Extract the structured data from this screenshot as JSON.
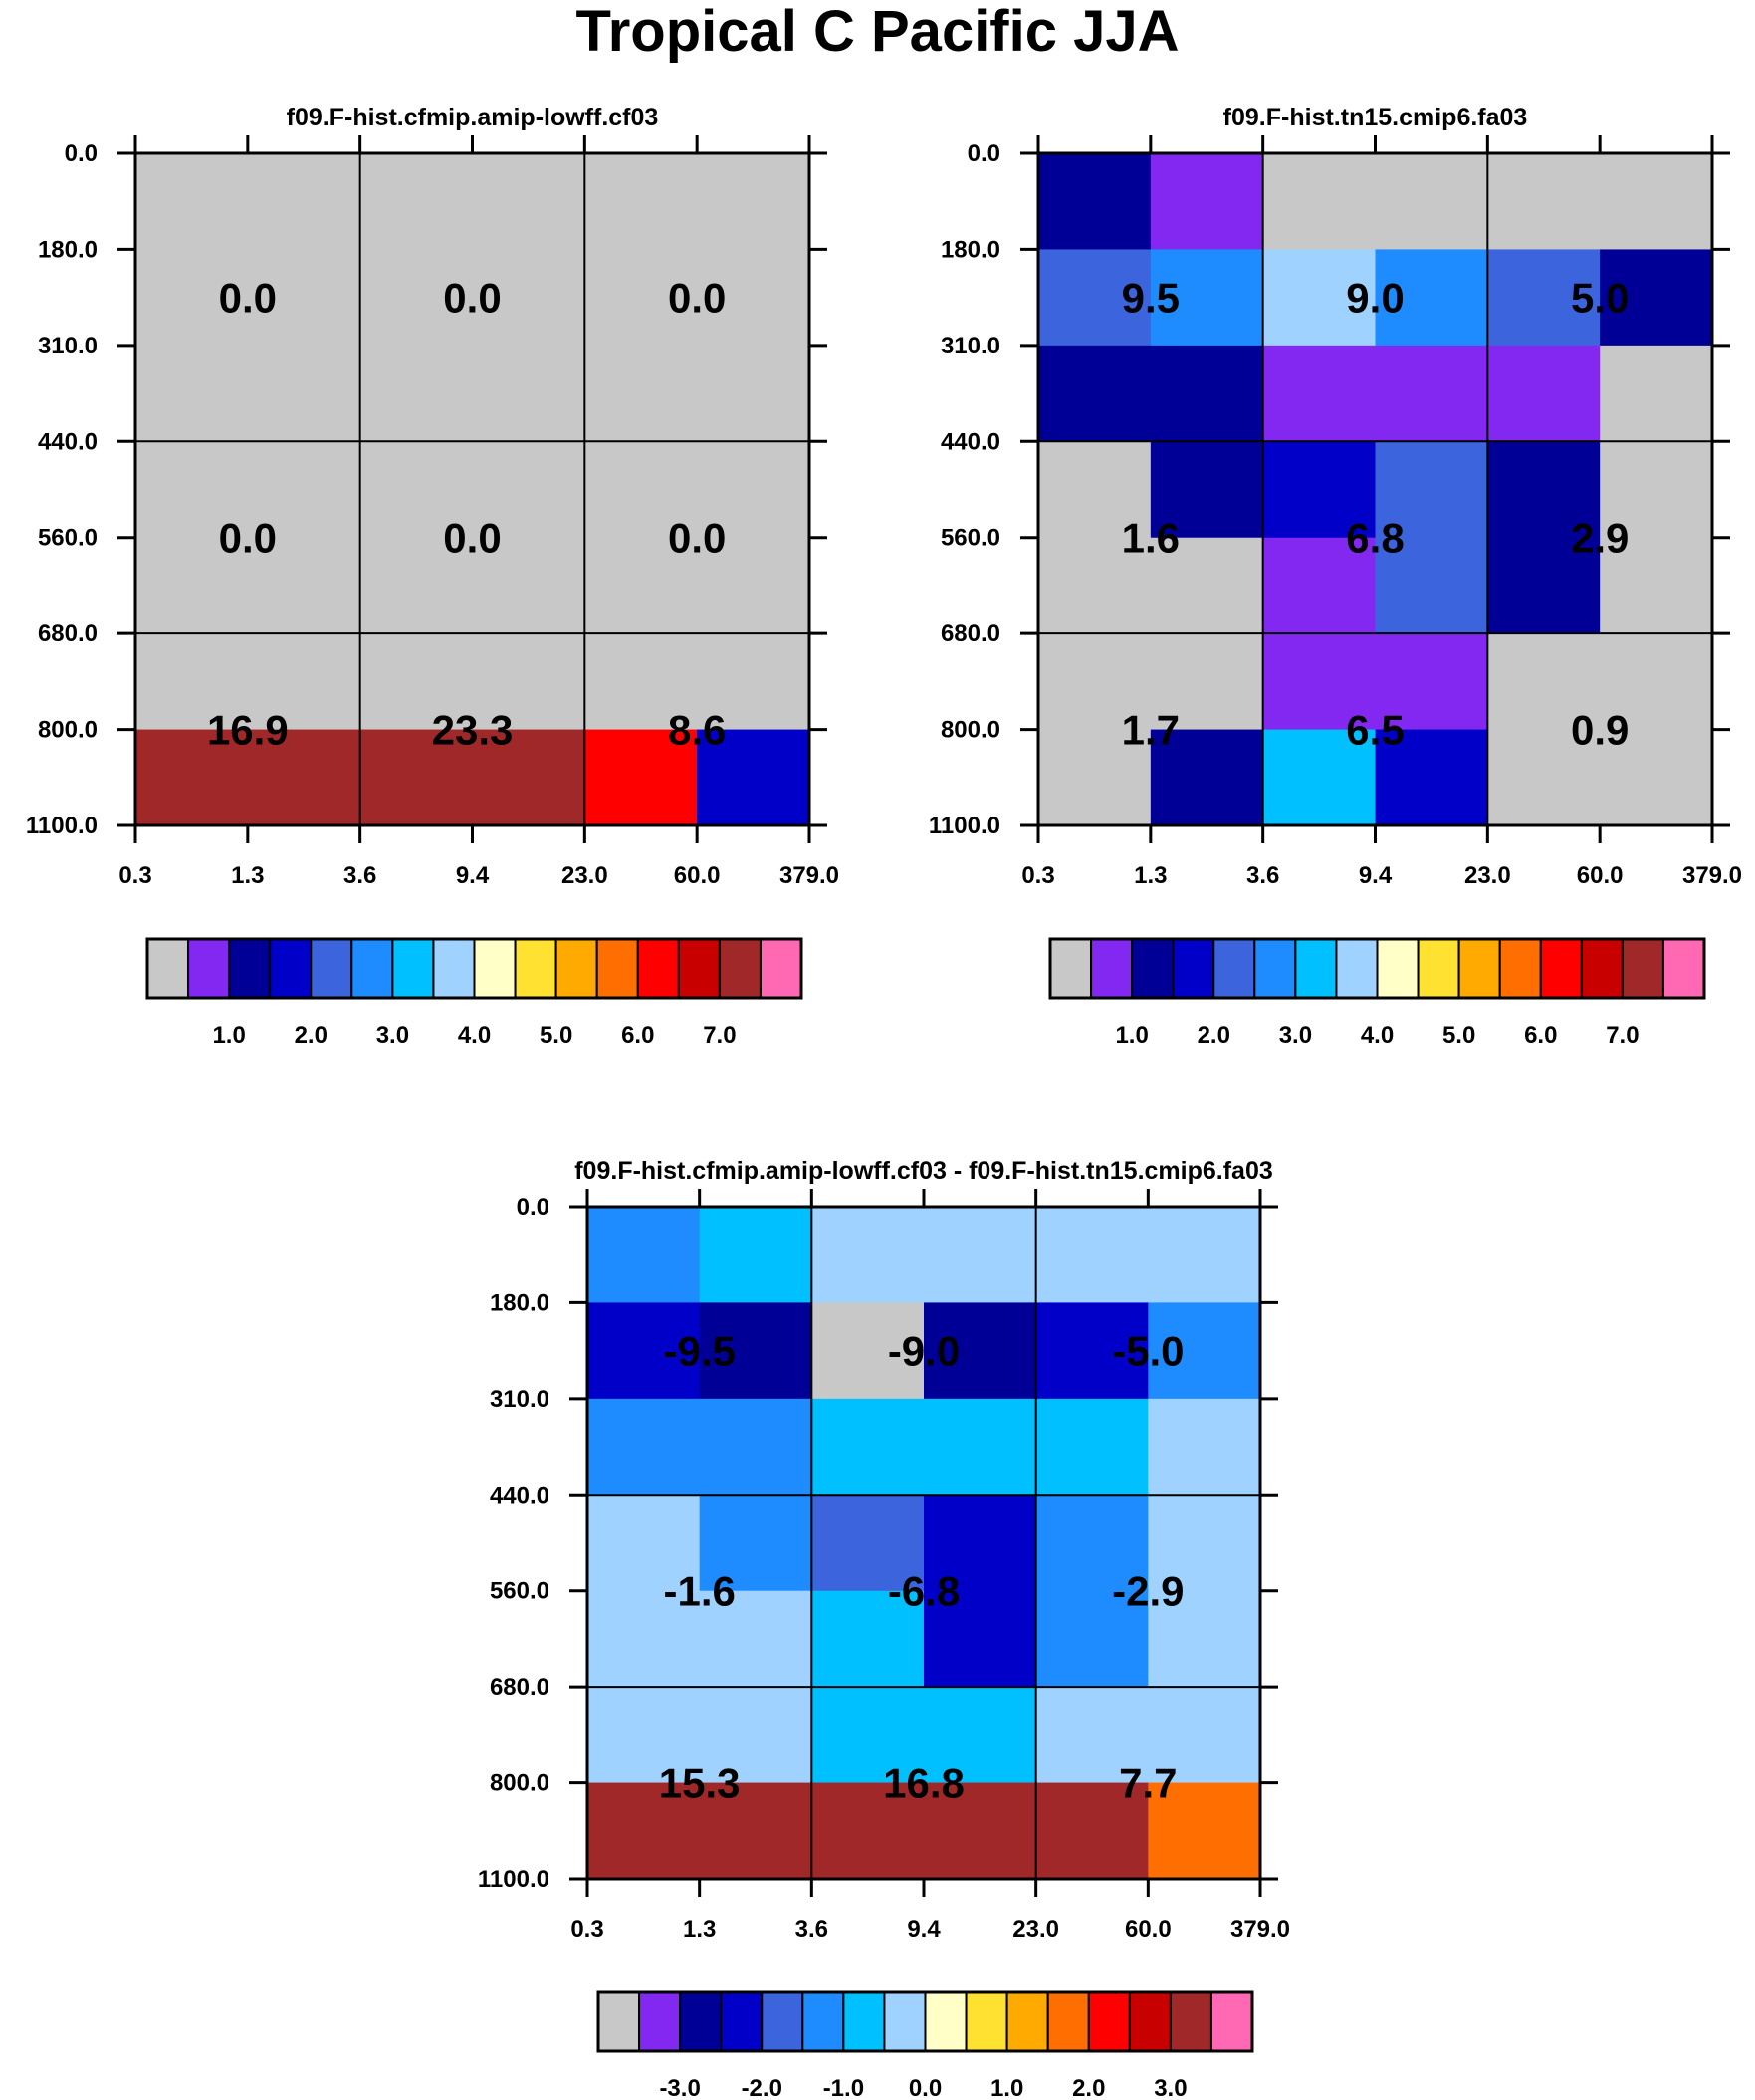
{
  "title": "Tropical C Pacific JJA",
  "chart_data": [
    {
      "type": "heatmap",
      "title": "f09.F-hist.cfmip.amip-lowff.cf03",
      "x_ticks": [
        "0.3",
        "1.3",
        "3.6",
        "9.4",
        "23.0",
        "60.0",
        "379.0"
      ],
      "y_ticks": [
        "0.0",
        "180.0",
        "310.0",
        "440.0",
        "560.0",
        "680.0",
        "800.0",
        "1100.0"
      ],
      "cells": [
        [
          0,
          0,
          0,
          0,
          0,
          0
        ],
        [
          0,
          0,
          0,
          0,
          0,
          0
        ],
        [
          0,
          0,
          0,
          0,
          0,
          0
        ],
        [
          0,
          0,
          0,
          0,
          0,
          0
        ],
        [
          0,
          0,
          0,
          0,
          0,
          0
        ],
        [
          0,
          0,
          0,
          0,
          0,
          0
        ],
        [
          14,
          14,
          14,
          14,
          12,
          3
        ]
      ],
      "labels": [
        [
          "0.0",
          "0.0",
          "0.0"
        ],
        [
          "0.0",
          "0.0",
          "0.0"
        ],
        [
          "16.9",
          "23.3",
          "8.6"
        ]
      ],
      "colorbar": {
        "colors": [
          "#c8c8c8",
          "#8228f0",
          "#000096",
          "#0000c8",
          "#3c64dc",
          "#1e8cff",
          "#00c0ff",
          "#a0d2ff",
          "#ffffc8",
          "#ffe132",
          "#ffaa00",
          "#ff6e00",
          "#ff0000",
          "#c80000",
          "#a02828",
          "#ff69b4"
        ],
        "labels": [
          "1.0",
          "2.0",
          "3.0",
          "4.0",
          "5.0",
          "6.0",
          "7.0"
        ]
      }
    },
    {
      "type": "heatmap",
      "title": "f09.F-hist.tn15.cmip6.fa03",
      "x_ticks": [
        "0.3",
        "1.3",
        "3.6",
        "9.4",
        "23.0",
        "60.0",
        "379.0"
      ],
      "y_ticks": [
        "0.0",
        "180.0",
        "310.0",
        "440.0",
        "560.0",
        "680.0",
        "800.0",
        "1100.0"
      ],
      "cells": [
        [
          2,
          1,
          0,
          0,
          0,
          0
        ],
        [
          4,
          5,
          7,
          5,
          4,
          2
        ],
        [
          2,
          2,
          1,
          1,
          1,
          0
        ],
        [
          0,
          2,
          3,
          4,
          2,
          0
        ],
        [
          0,
          0,
          1,
          4,
          2,
          0
        ],
        [
          0,
          0,
          1,
          1,
          0,
          0
        ],
        [
          0,
          2,
          6,
          3,
          0,
          0
        ]
      ],
      "labels": [
        [
          "9.5",
          "9.0",
          "5.0"
        ],
        [
          "1.6",
          "6.8",
          "2.9"
        ],
        [
          "1.7",
          "6.5",
          "0.9"
        ]
      ],
      "colorbar": {
        "colors": [
          "#c8c8c8",
          "#8228f0",
          "#000096",
          "#0000c8",
          "#3c64dc",
          "#1e8cff",
          "#00c0ff",
          "#a0d2ff",
          "#ffffc8",
          "#ffe132",
          "#ffaa00",
          "#ff6e00",
          "#ff0000",
          "#c80000",
          "#a02828",
          "#ff69b4"
        ],
        "labels": [
          "1.0",
          "2.0",
          "3.0",
          "4.0",
          "5.0",
          "6.0",
          "7.0"
        ]
      }
    },
    {
      "type": "heatmap",
      "title": "f09.F-hist.cfmip.amip-lowff.cf03 - f09.F-hist.tn15.cmip6.fa03",
      "x_ticks": [
        "0.3",
        "1.3",
        "3.6",
        "9.4",
        "23.0",
        "60.0",
        "379.0"
      ],
      "y_ticks": [
        "0.0",
        "180.0",
        "310.0",
        "440.0",
        "560.0",
        "680.0",
        "800.0",
        "1100.0"
      ],
      "cells": [
        [
          5,
          6,
          7,
          7,
          7,
          7
        ],
        [
          3,
          2,
          0,
          2,
          3,
          5
        ],
        [
          5,
          5,
          6,
          6,
          6,
          7
        ],
        [
          7,
          5,
          4,
          3,
          5,
          7
        ],
        [
          7,
          7,
          6,
          3,
          5,
          7
        ],
        [
          7,
          7,
          6,
          6,
          7,
          7
        ],
        [
          14,
          14,
          14,
          14,
          14,
          11
        ]
      ],
      "labels": [
        [
          "-9.5",
          "-9.0",
          "-5.0"
        ],
        [
          "-1.6",
          "-6.8",
          "-2.9"
        ],
        [
          "15.3",
          "16.8",
          "7.7"
        ]
      ],
      "colorbar": {
        "colors": [
          "#c8c8c8",
          "#8228f0",
          "#000096",
          "#0000c8",
          "#3c64dc",
          "#1e8cff",
          "#00c0ff",
          "#a0d2ff",
          "#ffffc8",
          "#ffe132",
          "#ffaa00",
          "#ff6e00",
          "#ff0000",
          "#c80000",
          "#a02828",
          "#ff69b4"
        ],
        "labels": [
          "-3.0",
          "-2.0",
          "-1.0",
          "0.0",
          "1.0",
          "2.0",
          "3.0"
        ]
      }
    }
  ]
}
